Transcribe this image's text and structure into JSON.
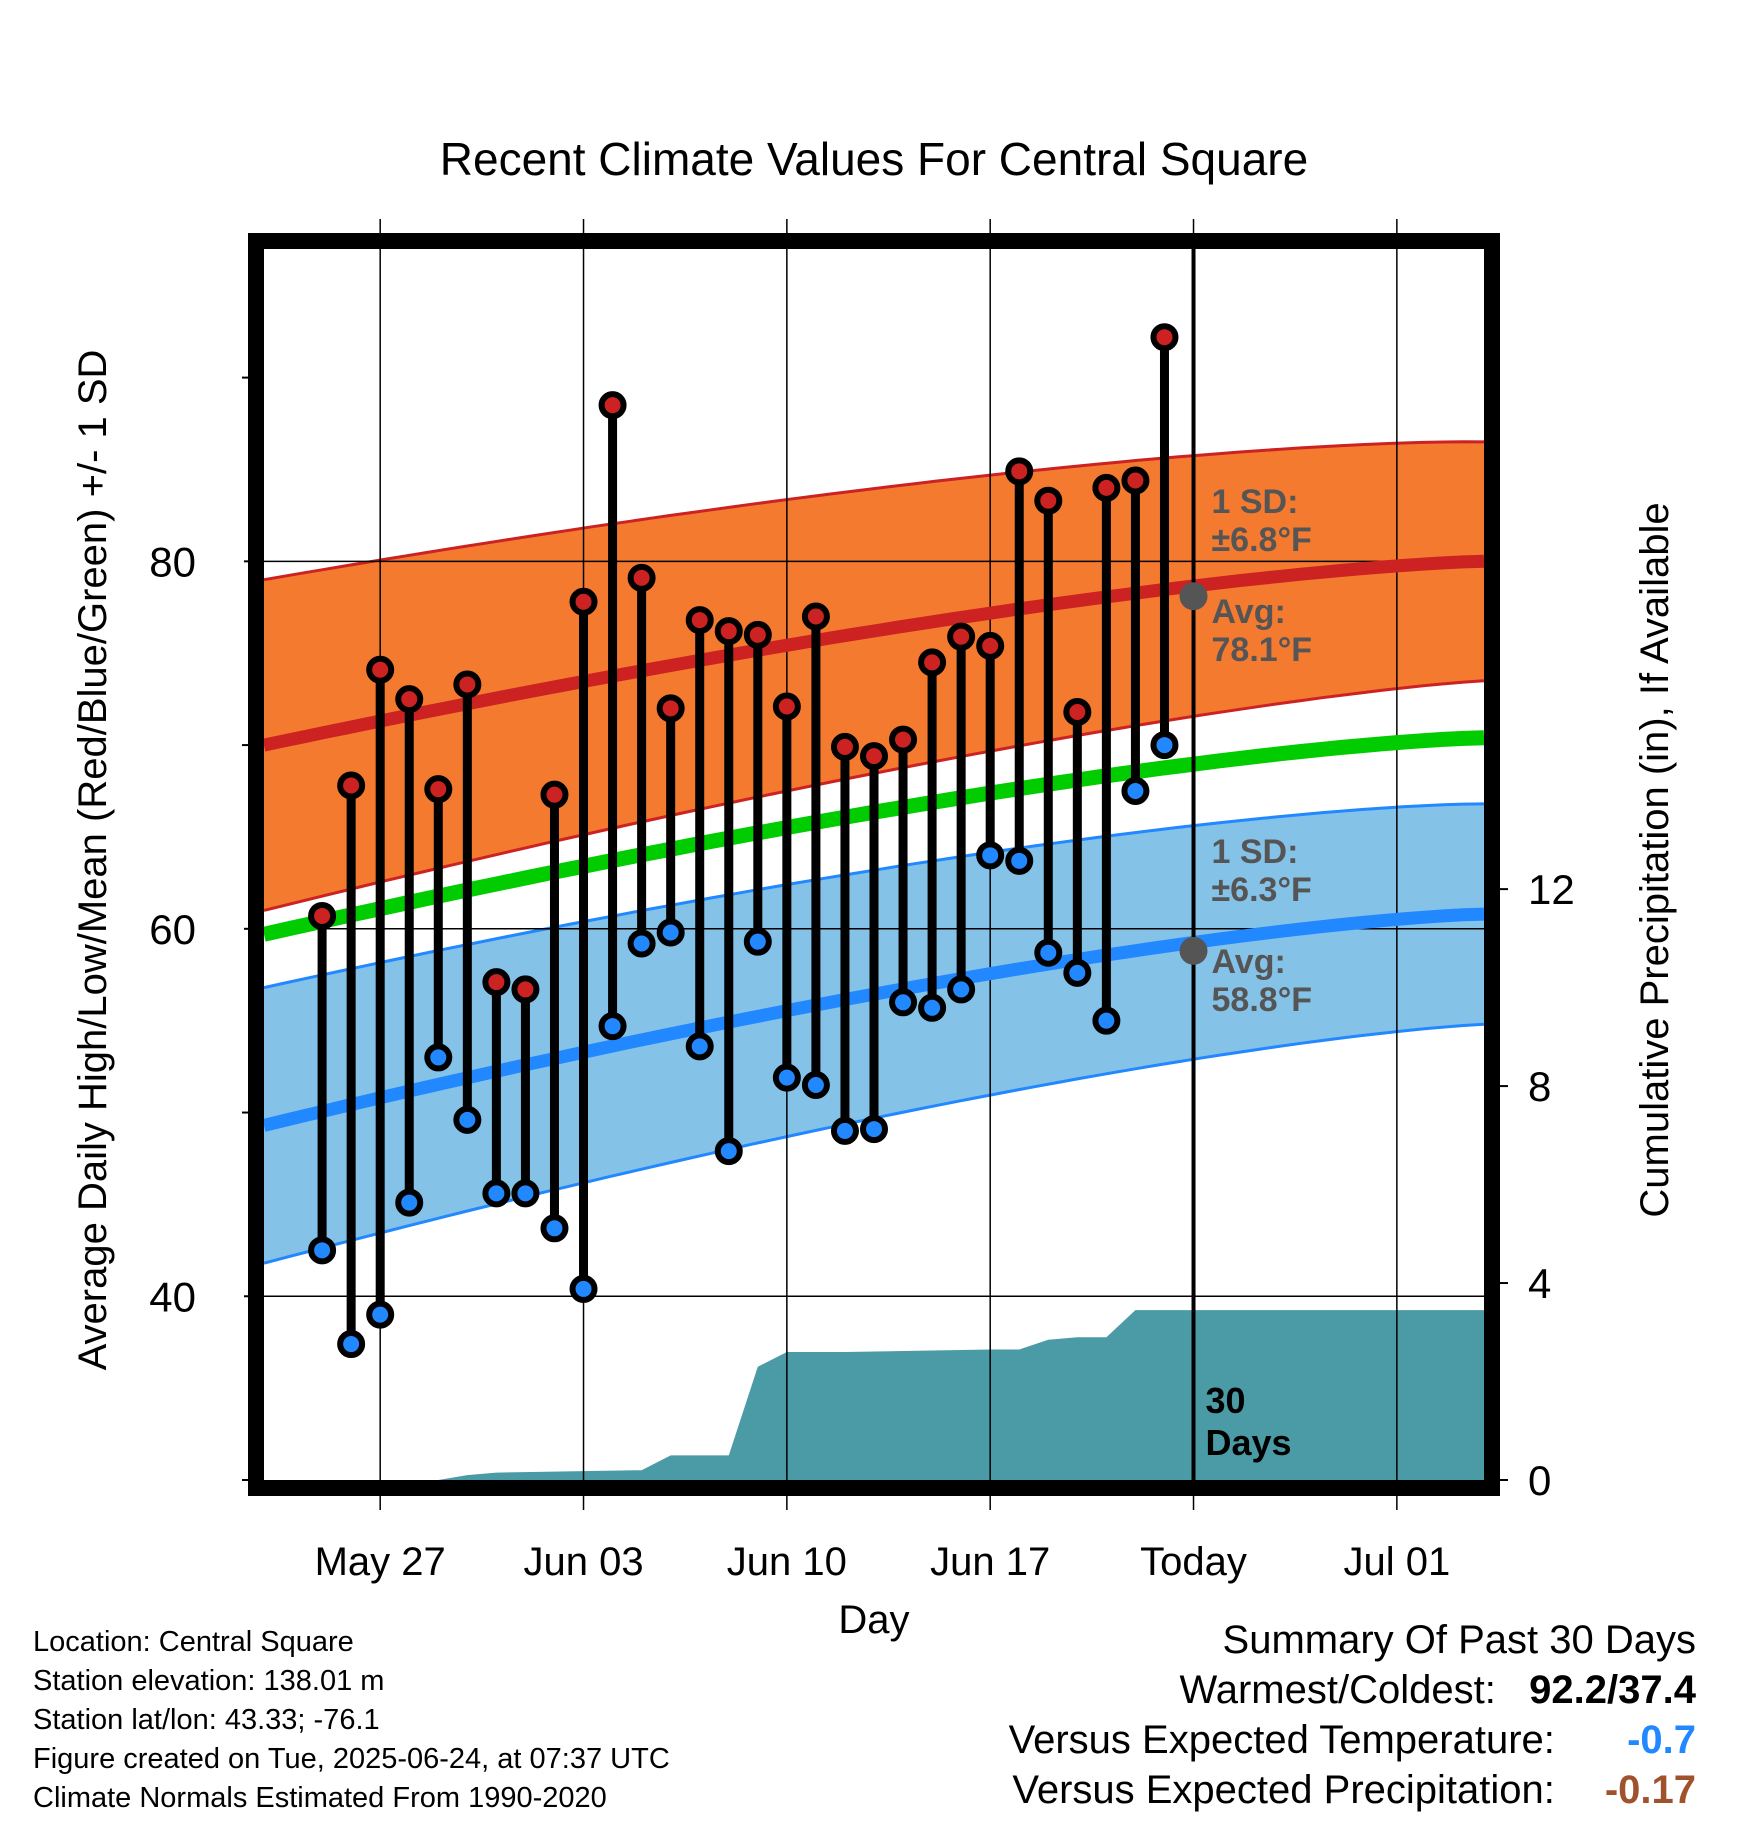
{
  "chart_data": {
    "type": "line",
    "title": "Recent Climate Values For Central Square",
    "xlabel": "Day",
    "ylabel": "Average Daily High/Low/Mean (Red/Blue/Green) +/- 1 SD",
    "ylabel_right": "Cumulative Precipitation (in), If Available",
    "x_ticks": [
      "May 27",
      "Jun 03",
      "Jun 10",
      "Jun 17",
      "Today",
      "Jul 01"
    ],
    "y_ticks_left": [
      40,
      60,
      80
    ],
    "y_ticks_right": [
      0,
      4,
      8,
      12
    ],
    "ylim_left": [
      30,
      97
    ],
    "ylim_right": [
      0,
      25
    ],
    "xlim": [
      "2025-05-23",
      "2025-07-04"
    ],
    "grid": true,
    "today": "2025-06-24",
    "today_label": "Today",
    "window_label": [
      "30",
      "Days"
    ],
    "normals": {
      "high": {
        "avg_label": [
          "Avg:",
          "78.1°F"
        ],
        "sd_label": [
          "1 SD:",
          "±6.8°F"
        ],
        "start": 70.0,
        "end": 80.0,
        "sd_start": 9.0,
        "sd_end": 6.5,
        "color": "#cc2222",
        "band_color": "#f47a30"
      },
      "low": {
        "avg_label": [
          "Avg:",
          "58.8°F"
        ],
        "sd_label": [
          "1 SD:",
          "±6.3°F"
        ],
        "start": 49.3,
        "end": 60.8,
        "sd_start": 7.5,
        "sd_end": 6.0,
        "color": "#2288ff",
        "band_color": "#85c2e8"
      },
      "mean": {
        "start": 59.7,
        "end": 70.4,
        "color": "#00cc00"
      },
      "today_high": 78.1,
      "today_low": 58.8,
      "marker_color": "#555555"
    },
    "series": [
      {
        "name": "High",
        "color": "#cc2222",
        "x": [
          "2025-05-25",
          "2025-05-26",
          "2025-05-27",
          "2025-05-28",
          "2025-05-29",
          "2025-05-30",
          "2025-05-31",
          "2025-06-01",
          "2025-06-02",
          "2025-06-03",
          "2025-06-04",
          "2025-06-05",
          "2025-06-06",
          "2025-06-07",
          "2025-06-08",
          "2025-06-09",
          "2025-06-10",
          "2025-06-11",
          "2025-06-12",
          "2025-06-13",
          "2025-06-14",
          "2025-06-15",
          "2025-06-16",
          "2025-06-17",
          "2025-06-18",
          "2025-06-19",
          "2025-06-20",
          "2025-06-21",
          "2025-06-22",
          "2025-06-23"
        ],
        "values": [
          60.7,
          67.8,
          74.1,
          72.5,
          67.6,
          73.3,
          57.1,
          56.7,
          67.3,
          77.8,
          88.5,
          79.1,
          72.0,
          76.8,
          76.2,
          76.0,
          72.1,
          77.0,
          69.9,
          69.4,
          70.3,
          74.5,
          75.9,
          75.4,
          84.9,
          83.3,
          71.8,
          84.0,
          84.4,
          92.2
        ]
      },
      {
        "name": "Low",
        "color": "#2288ff",
        "x": [
          "2025-05-25",
          "2025-05-26",
          "2025-05-27",
          "2025-05-28",
          "2025-05-29",
          "2025-05-30",
          "2025-05-31",
          "2025-06-01",
          "2025-06-02",
          "2025-06-03",
          "2025-06-04",
          "2025-06-05",
          "2025-06-06",
          "2025-06-07",
          "2025-06-08",
          "2025-06-09",
          "2025-06-10",
          "2025-06-11",
          "2025-06-12",
          "2025-06-13",
          "2025-06-14",
          "2025-06-15",
          "2025-06-16",
          "2025-06-17",
          "2025-06-18",
          "2025-06-19",
          "2025-06-20",
          "2025-06-21",
          "2025-06-22",
          "2025-06-23"
        ],
        "values": [
          42.5,
          37.4,
          39.0,
          45.1,
          53.0,
          49.6,
          45.6,
          45.6,
          43.7,
          40.4,
          54.7,
          59.2,
          59.8,
          53.6,
          47.9,
          59.3,
          51.9,
          51.5,
          49.0,
          49.1,
          56.0,
          55.7,
          56.7,
          64.0,
          63.7,
          58.7,
          57.6,
          55.0,
          67.5,
          70.0
        ]
      },
      {
        "name": "Cumulative Precipitation",
        "color": "#4a9ba5",
        "x": [
          "2025-05-23",
          "2025-05-29",
          "2025-05-30",
          "2025-05-31",
          "2025-06-05",
          "2025-06-06",
          "2025-06-08",
          "2025-06-09",
          "2025-06-10",
          "2025-06-12",
          "2025-06-17",
          "2025-06-18",
          "2025-06-19",
          "2025-06-20",
          "2025-06-21",
          "2025-06-22",
          "2025-06-23",
          "2025-07-04"
        ],
        "values": [
          0.0,
          0.0,
          0.1,
          0.15,
          0.2,
          0.5,
          0.5,
          2.3,
          2.6,
          2.6,
          2.65,
          2.65,
          2.85,
          2.9,
          2.9,
          3.45,
          3.45,
          3.45
        ]
      }
    ]
  },
  "location": {
    "location_line": "Location: Central Square",
    "elevation_line": "Station elevation: 138.01 m",
    "latlon_line": "Station lat/lon: 43.33; -76.1",
    "created_line": "Figure created on Tue, 2025-06-24, at 07:37 UTC",
    "normals_line": "Climate Normals Estimated From 1990-2020"
  },
  "summary": {
    "title": "Summary Of Past 30 Days",
    "warm_cold_label": "Warmest/Coldest:",
    "warm_cold_value": "92.2/37.4",
    "temp_label": "Versus Expected Temperature:",
    "temp_value": "-0.7",
    "temp_color": "#2288ff",
    "precip_label": "Versus Expected Precipitation:",
    "precip_value": "-0.17",
    "precip_color": "#a0522d"
  }
}
